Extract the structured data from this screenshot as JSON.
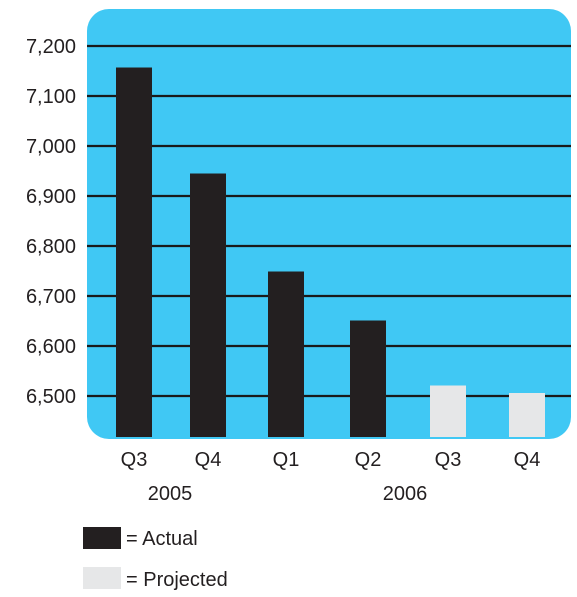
{
  "colors": {
    "background": "#40c8f4",
    "gridline": "#1a1a1a",
    "actual": "#231f20",
    "projected": "#e6e7e8",
    "text": "#231f20"
  },
  "chart_data": {
    "type": "bar",
    "y_ticks": [
      "7,200",
      "7,100",
      "7,000",
      "6,900",
      "6,800",
      "6,700",
      "6,600",
      "6,500"
    ],
    "ylim": [
      6470,
      7270
    ],
    "grid": true,
    "categories": [
      "Q3",
      "Q4",
      "Q1",
      "Q2",
      "Q3",
      "Q4"
    ],
    "years": [
      {
        "label": "2005",
        "categories": [
          "Q3",
          "Q4"
        ]
      },
      {
        "label": "2006",
        "categories": [
          "Q1",
          "Q2",
          "Q3",
          "Q4"
        ]
      }
    ],
    "values": [
      7157,
      6945,
      6749,
      6651,
      6521,
      6506
    ],
    "status": [
      "actual",
      "actual",
      "actual",
      "actual",
      "projected",
      "projected"
    ],
    "legend": [
      {
        "key": "actual",
        "label": "= Actual"
      },
      {
        "key": "projected",
        "label": "= Projected"
      }
    ],
    "legend_position": "bottom-left"
  }
}
